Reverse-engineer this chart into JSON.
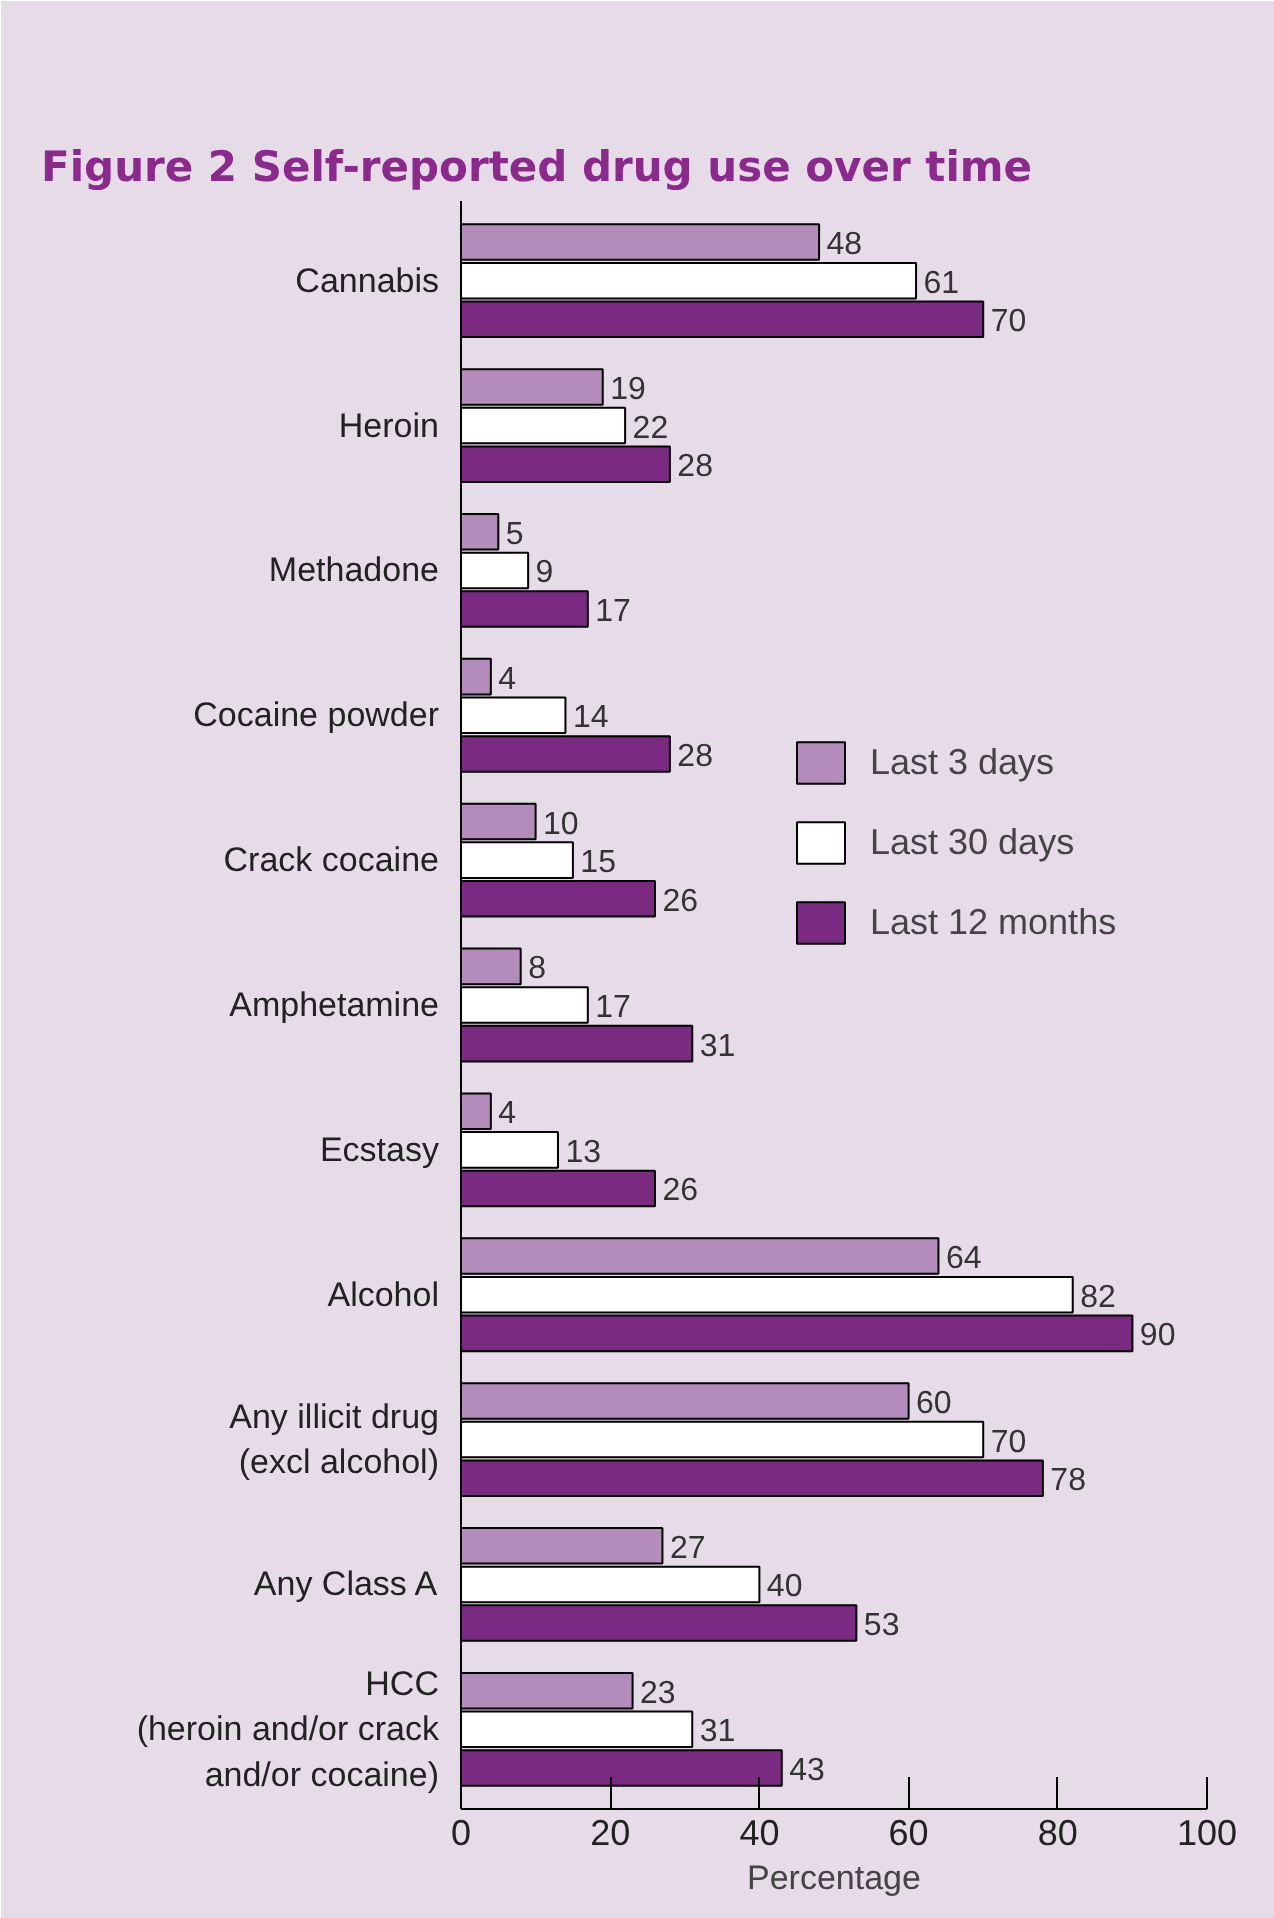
{
  "chart_data": {
    "type": "bar",
    "orientation": "horizontal",
    "title": "Figure 2  Self-reported drug use over time",
    "xlabel": "Percentage",
    "categories": [
      "Cannabis",
      "Heroin",
      "Methadone",
      "Cocaine powder",
      "Crack cocaine",
      "Amphetamine",
      "Ecstasy",
      "Alcohol",
      "Any illicit drug\n(excl alcohol)",
      "Any Class A",
      "HCC\n(heroin and/or crack\nand/or cocaine)"
    ],
    "series": [
      {
        "name": "Last 3 days",
        "color": "#b48cbb",
        "values": [
          48,
          19,
          5,
          4,
          10,
          8,
          4,
          64,
          60,
          27,
          23
        ]
      },
      {
        "name": "Last 30 days",
        "color": "#ffffff",
        "values": [
          61,
          22,
          9,
          14,
          15,
          17,
          13,
          82,
          70,
          40,
          31
        ]
      },
      {
        "name": "Last 12 months",
        "color": "#7b2a82",
        "values": [
          70,
          28,
          17,
          28,
          26,
          31,
          26,
          90,
          78,
          53,
          43
        ]
      }
    ],
    "xlim": [
      0,
      100
    ],
    "xticks": [
      0,
      20,
      40,
      60,
      80,
      100
    ],
    "data_labels": true,
    "legend": "right",
    "grid": false
  }
}
